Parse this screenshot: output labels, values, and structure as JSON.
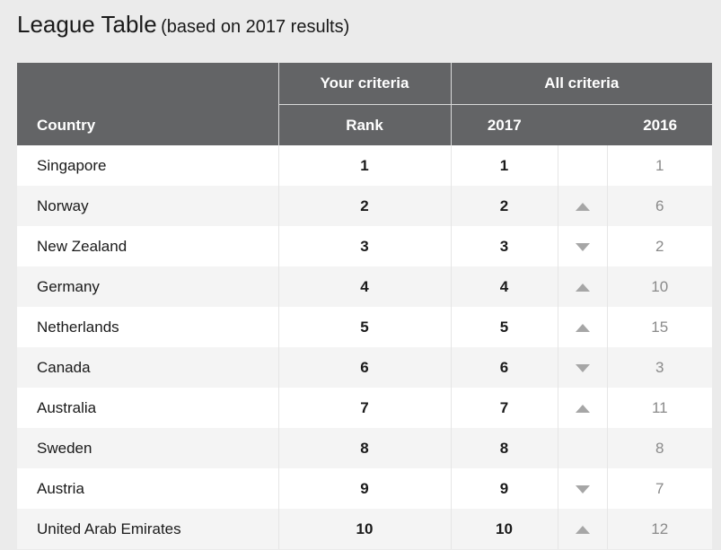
{
  "title": {
    "main": "League Table",
    "sub": "(based on 2017 results)"
  },
  "headers": {
    "country": "Country",
    "your_criteria": "Your criteria",
    "all_criteria": "All criteria",
    "rank": "Rank",
    "year_2017": "2017",
    "year_2016": "2016"
  },
  "rows": [
    {
      "country": "Singapore",
      "rank": "1",
      "y2017": "1",
      "trend": "none",
      "y2016": "1"
    },
    {
      "country": "Norway",
      "rank": "2",
      "y2017": "2",
      "trend": "up",
      "y2016": "6"
    },
    {
      "country": "New Zealand",
      "rank": "3",
      "y2017": "3",
      "trend": "down",
      "y2016": "2"
    },
    {
      "country": "Germany",
      "rank": "4",
      "y2017": "4",
      "trend": "up",
      "y2016": "10"
    },
    {
      "country": "Netherlands",
      "rank": "5",
      "y2017": "5",
      "trend": "up",
      "y2016": "15"
    },
    {
      "country": "Canada",
      "rank": "6",
      "y2017": "6",
      "trend": "down",
      "y2016": "3"
    },
    {
      "country": "Australia",
      "rank": "7",
      "y2017": "7",
      "trend": "up",
      "y2016": "11"
    },
    {
      "country": "Sweden",
      "rank": "8",
      "y2017": "8",
      "trend": "none",
      "y2016": "8"
    },
    {
      "country": "Austria",
      "rank": "9",
      "y2017": "9",
      "trend": "down",
      "y2016": "7"
    },
    {
      "country": "United Arab Emirates",
      "rank": "10",
      "y2017": "10",
      "trend": "up",
      "y2016": "12"
    }
  ],
  "icons": {
    "up": "triangle-up-icon",
    "down": "triangle-down-icon"
  },
  "colors": {
    "header_bg": "#636466",
    "page_bg": "#ebebeb",
    "row_alt": "#f4f4f4",
    "arrow": "#a6a6a6",
    "muted_text": "#8a8a8a"
  }
}
